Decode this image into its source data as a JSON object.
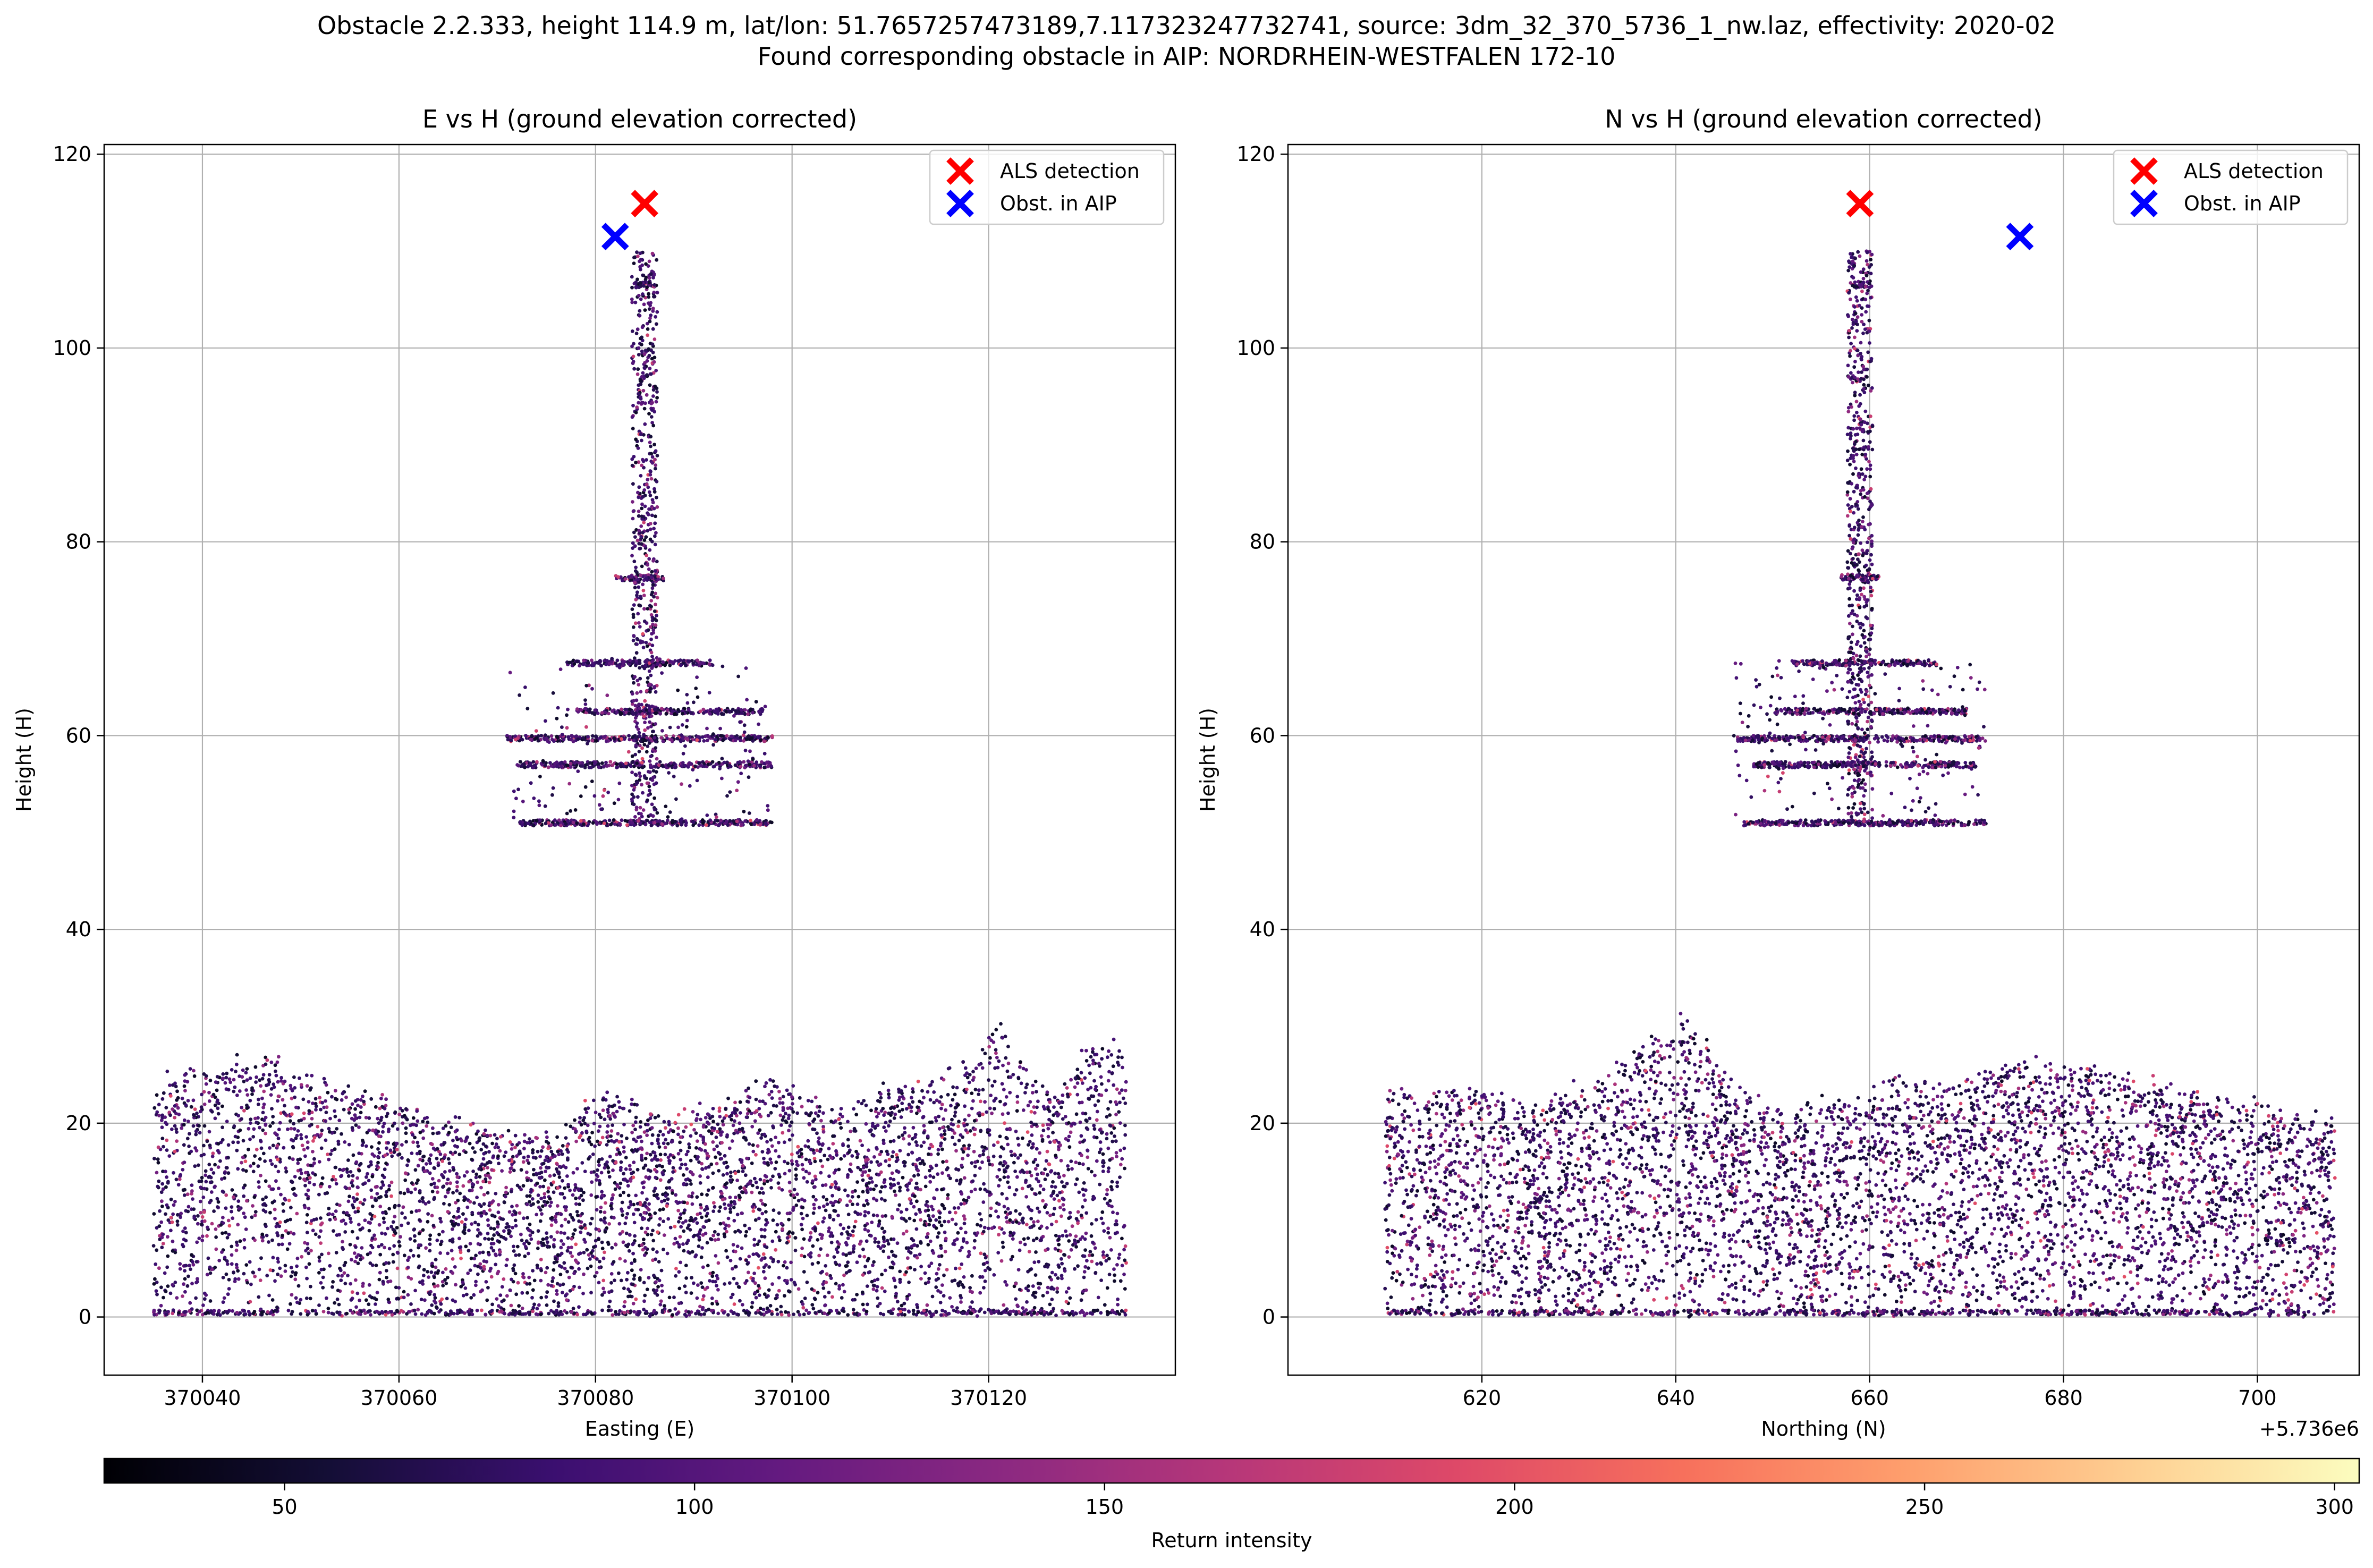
{
  "figure": {
    "title_line1": "Obstacle 2.2.333, height 114.9 m, lat/lon: 51.7657257473189,7.117323247732741, source: 3dm_32_370_5736_1_nw.laz, effectivity: 2020-02",
    "title_line2": "Found corresponding obstacle in AIP: NORDRHEIN-WESTFALEN 172-10"
  },
  "colors": {
    "als_marker": "#ff0000",
    "aip_marker": "#0000ff",
    "colormap": "magma",
    "grid": "#b0b0b0"
  },
  "chart_data": [
    {
      "type": "scatter",
      "title": "E vs H (ground elevation corrected)",
      "xlabel": "Easting (E)",
      "ylabel": "Height (H)",
      "xlim": [
        370030,
        370139
      ],
      "ylim": [
        -6,
        121
      ],
      "xticks": [
        370040,
        370060,
        370080,
        370100,
        370120
      ],
      "xtick_labels": [
        "370040",
        "370060",
        "370080",
        "370100",
        "370120"
      ],
      "yticks": [
        0,
        20,
        40,
        60,
        80,
        100,
        120
      ],
      "ytick_labels": [
        "0",
        "20",
        "40",
        "60",
        "80",
        "100",
        "120"
      ],
      "x_offset_label": "",
      "grid": true,
      "legend_position": "upper right",
      "legend": [
        "ALS detection",
        "Obst. in AIP"
      ],
      "als_detection": {
        "x": 370085,
        "y": 114.9
      },
      "aip_obstacle": {
        "x": 370082,
        "y": 111.5
      },
      "point_cloud": {
        "tower": {
          "x_center": 370085,
          "x_half_width": 1.3,
          "y_from": 51,
          "y_to": 110
        },
        "platforms": [
          {
            "y": 51.0,
            "x_from": 370072,
            "x_to": 370098
          },
          {
            "y": 57.0,
            "x_from": 370072,
            "x_to": 370098
          },
          {
            "y": 59.7,
            "x_from": 370071,
            "x_to": 370098
          },
          {
            "y": 62.5,
            "x_from": 370078,
            "x_to": 370097
          },
          {
            "y": 67.5,
            "x_from": 370077,
            "x_to": 370092
          },
          {
            "y": 76.3,
            "x_from": 370082,
            "x_to": 370087
          },
          {
            "y": 106.5,
            "x_from": 370084,
            "x_to": 370086
          }
        ],
        "vegetation_profile": [
          [
            370035,
            25
          ],
          [
            370040,
            25
          ],
          [
            370046,
            27
          ],
          [
            370050,
            25
          ],
          [
            370055,
            23
          ],
          [
            370060,
            22
          ],
          [
            370064,
            20
          ],
          [
            370070,
            19
          ],
          [
            370076,
            18
          ],
          [
            370080,
            23
          ],
          [
            370083,
            22
          ],
          [
            370086,
            21
          ],
          [
            370090,
            21
          ],
          [
            370094,
            22
          ],
          [
            370098,
            25
          ],
          [
            370102,
            22
          ],
          [
            370106,
            21
          ],
          [
            370110,
            24
          ],
          [
            370113,
            24
          ],
          [
            370118,
            26
          ],
          [
            370121,
            31
          ],
          [
            370124,
            25
          ],
          [
            370127,
            22
          ],
          [
            370130,
            28
          ],
          [
            370134,
            28
          ]
        ],
        "x_range": [
          370035,
          370134
        ]
      }
    },
    {
      "type": "scatter",
      "title": "N vs H (ground elevation corrected)",
      "xlabel": "Northing (N)",
      "ylabel": "Height (H)",
      "xlim": [
        5736600,
        5736710.5
      ],
      "ylim": [
        -6,
        121
      ],
      "xticks": [
        5736620,
        5736640,
        5736660,
        5736680,
        5736700
      ],
      "xtick_labels": [
        "620",
        "640",
        "660",
        "680",
        "700"
      ],
      "yticks": [
        0,
        20,
        40,
        60,
        80,
        100,
        120
      ],
      "ytick_labels": [
        "0",
        "20",
        "40",
        "60",
        "80",
        "100",
        "120"
      ],
      "x_offset_label": "+5.736e6",
      "grid": true,
      "legend_position": "upper right",
      "legend": [
        "ALS detection",
        "Obst. in AIP"
      ],
      "als_detection": {
        "x": 5736659,
        "y": 114.9
      },
      "aip_obstacle": {
        "x": 5736675.5,
        "y": 111.5
      },
      "point_cloud": {
        "tower": {
          "x_center": 5736659,
          "x_half_width": 1.3,
          "y_from": 51,
          "y_to": 110
        },
        "platforms": [
          {
            "y": 51.0,
            "x_from": 5736647,
            "x_to": 5736672
          },
          {
            "y": 57.0,
            "x_from": 5736648,
            "x_to": 5736671
          },
          {
            "y": 59.7,
            "x_from": 5736646,
            "x_to": 5736672
          },
          {
            "y": 62.5,
            "x_from": 5736650,
            "x_to": 5736670
          },
          {
            "y": 67.5,
            "x_from": 5736652,
            "x_to": 5736667
          },
          {
            "y": 76.3,
            "x_from": 5736657,
            "x_to": 5736661
          },
          {
            "y": 106.5,
            "x_from": 5736658,
            "x_to": 5736660
          }
        ],
        "vegetation_profile": [
          [
            5736610,
            23
          ],
          [
            5736615,
            23
          ],
          [
            5736620,
            24
          ],
          [
            5736625,
            21
          ],
          [
            5736630,
            24
          ],
          [
            5736635,
            26
          ],
          [
            5736640,
            31
          ],
          [
            5736644,
            27
          ],
          [
            5736648,
            22
          ],
          [
            5736652,
            21
          ],
          [
            5736656,
            23
          ],
          [
            5736658,
            22
          ],
          [
            5736662,
            24
          ],
          [
            5736666,
            24
          ],
          [
            5736670,
            25
          ],
          [
            5736675,
            26
          ],
          [
            5736680,
            26
          ],
          [
            5736685,
            25
          ],
          [
            5736690,
            24
          ],
          [
            5736695,
            22
          ],
          [
            5736700,
            22
          ],
          [
            5736705,
            20
          ],
          [
            5736708,
            21
          ]
        ],
        "x_range": [
          5736610,
          5736708
        ]
      }
    }
  ],
  "colorbar": {
    "label": "Return intensity",
    "range": [
      28,
      303
    ],
    "ticks": [
      50,
      100,
      150,
      200,
      250,
      300
    ],
    "tick_labels": [
      "50",
      "100",
      "150",
      "200",
      "250",
      "300"
    ]
  }
}
